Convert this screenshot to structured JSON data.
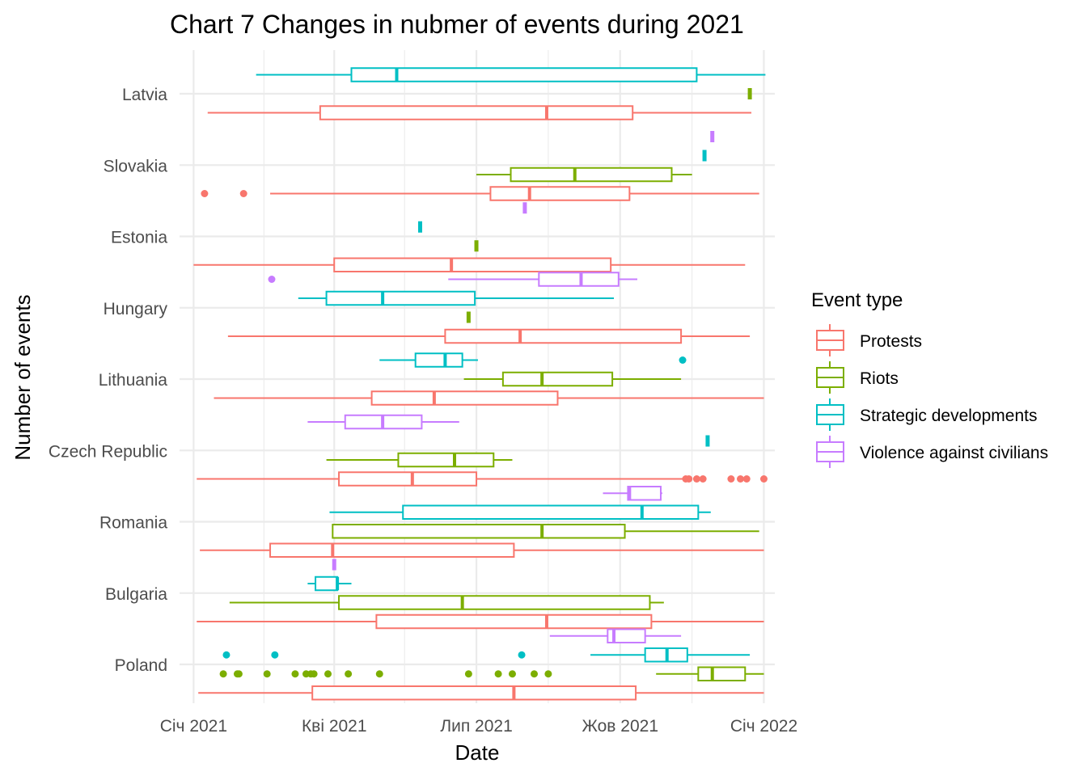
{
  "chart_data": {
    "type": "boxplot",
    "orientation": "horizontal",
    "title": "Chart 7 Changes in nubmer of events during 2021",
    "xlabel": "Date",
    "ylabel": "Number of events",
    "xlim": [
      "2020-12-23",
      "2022-01-08"
    ],
    "x_ticks": [
      {
        "date": "2021-01-01",
        "label": "Січ 2021"
      },
      {
        "date": "2021-04-01",
        "label": "Кві 2021"
      },
      {
        "date": "2021-07-01",
        "label": "Лип 2021"
      },
      {
        "date": "2021-10-01",
        "label": "Жов 2021"
      },
      {
        "date": "2022-01-01",
        "label": "Січ 2022"
      }
    ],
    "x_minor_ticks": [
      "2021-02-15",
      "2021-05-16",
      "2021-08-16",
      "2021-11-16"
    ],
    "categories": [
      "Poland",
      "Bulgaria",
      "Romania",
      "Czech Republic",
      "Lithuania",
      "Hungary",
      "Estonia",
      "Slovakia",
      "Latvia"
    ],
    "legend": {
      "title": "Event type",
      "position": "right",
      "items": [
        {
          "name": "Protests",
          "color": "#F8766D"
        },
        {
          "name": "Riots",
          "color": "#7CAE00"
        },
        {
          "name": "Strategic developments",
          "color": "#00BFC4"
        },
        {
          "name": "Violence against civilians",
          "color": "#C77CFF"
        }
      ]
    },
    "grid": true,
    "boxes": [
      {
        "category": "Latvia",
        "series": "Protests",
        "whisker_low": "2021-01-10",
        "q1": "2021-03-23",
        "median": "2021-08-15",
        "q3": "2021-10-09",
        "whisker_high": "2021-12-24",
        "outliers": []
      },
      {
        "category": "Latvia",
        "series": "Riots",
        "whisker_low": "2021-12-23",
        "q1": "2021-12-23",
        "median": "2021-12-23",
        "q3": "2021-12-23",
        "whisker_high": "2021-12-23",
        "outliers": []
      },
      {
        "category": "Latvia",
        "series": "Strategic developments",
        "whisker_low": "2021-02-10",
        "q1": "2021-04-12",
        "median": "2021-05-11",
        "q3": "2021-10-50",
        "whisker_high": "2022-01-02",
        "outliers": []
      },
      {
        "category": "Slovakia",
        "series": "Protests",
        "whisker_low": "2021-02-19",
        "q1": "2021-07-10",
        "median": "2021-08-04",
        "q3": "2021-10-07",
        "whisker_high": "2021-12-29",
        "outliers": [
          "2021-01-08",
          "2021-02-02"
        ]
      },
      {
        "category": "Slovakia",
        "series": "Riots",
        "whisker_low": "2021-07-01",
        "q1": "2021-07-23",
        "median": "2021-09-02",
        "q3": "2021-11-03",
        "whisker_high": "2021-11-16",
        "outliers": []
      },
      {
        "category": "Slovakia",
        "series": "Strategic developments",
        "whisker_low": "2021-11-24",
        "q1": "2021-11-24",
        "median": "2021-11-24",
        "q3": "2021-11-24",
        "whisker_high": "2021-11-24",
        "outliers": []
      },
      {
        "category": "Slovakia",
        "series": "Violence against civilians",
        "whisker_low": "2021-11-29",
        "q1": "2021-11-29",
        "median": "2021-11-29",
        "q3": "2021-11-29",
        "whisker_high": "2021-11-29",
        "outliers": []
      },
      {
        "category": "Estonia",
        "series": "Protests",
        "whisker_low": "2021-01-01",
        "q1": "2021-04-01",
        "median": "2021-06-15",
        "q3": "2021-09-25",
        "whisker_high": "2021-12-20",
        "outliers": []
      },
      {
        "category": "Estonia",
        "series": "Riots",
        "whisker_low": "2021-07-01",
        "q1": "2021-07-01",
        "median": "2021-07-01",
        "q3": "2021-07-01",
        "whisker_high": "2021-07-01",
        "outliers": []
      },
      {
        "category": "Estonia",
        "series": "Strategic developments",
        "whisker_low": "2021-05-26",
        "q1": "2021-05-26",
        "median": "2021-05-26",
        "q3": "2021-05-26",
        "whisker_high": "2021-05-26",
        "outliers": []
      },
      {
        "category": "Estonia",
        "series": "Violence against civilians",
        "whisker_low": "2021-08-01",
        "q1": "2021-08-01",
        "median": "2021-08-01",
        "q3": "2021-08-01",
        "whisker_high": "2021-08-01",
        "outliers": []
      },
      {
        "category": "Hungary",
        "series": "Protests",
        "whisker_low": "2021-01-23",
        "q1": "2021-06-11",
        "median": "2021-07-29",
        "q3": "2021-11-09",
        "whisker_high": "2021-12-23",
        "outliers": []
      },
      {
        "category": "Hungary",
        "series": "Riots",
        "whisker_low": "2021-06-26",
        "q1": "2021-06-26",
        "median": "2021-06-26",
        "q3": "2021-06-26",
        "whisker_high": "2021-06-26",
        "outliers": []
      },
      {
        "category": "Hungary",
        "series": "Strategic developments",
        "whisker_low": "2021-03-09",
        "q1": "2021-03-27",
        "median": "2021-05-02",
        "q3": "2021-06-30",
        "whisker_high": "2021-09-27",
        "outliers": []
      },
      {
        "category": "Hungary",
        "series": "Violence against civilians",
        "whisker_low": "2021-06-13",
        "q1": "2021-08-10",
        "median": "2021-09-06",
        "q3": "2021-09-30",
        "whisker_high": "2021-10-12",
        "outliers": [
          "2021-02-20"
        ]
      },
      {
        "category": "Lithuania",
        "series": "Protests",
        "whisker_low": "2021-01-14",
        "q1": "2021-04-25",
        "median": "2021-06-04",
        "q3": "2021-08-22",
        "whisker_high": "2022-01-01",
        "outliers": []
      },
      {
        "category": "Lithuania",
        "series": "Riots",
        "whisker_low": "2021-06-23",
        "q1": "2021-07-18",
        "median": "2021-08-12",
        "q3": "2021-09-26",
        "whisker_high": "2021-11-09",
        "outliers": []
      },
      {
        "category": "Lithuania",
        "series": "Strategic developments",
        "whisker_low": "2021-04-30",
        "q1": "2021-05-23",
        "median": "2021-06-11",
        "q3": "2021-06-22",
        "whisker_high": "2021-07-02",
        "outliers": [
          "2021-11-10"
        ]
      },
      {
        "category": "Czech Republic",
        "series": "Protests",
        "whisker_low": "2021-01-03",
        "q1": "2021-04-04",
        "median": "2021-05-21",
        "q3": "2021-07-01",
        "whisker_high": "2021-11-10",
        "outliers": [
          "2021-11-12",
          "2021-11-14",
          "2021-11-19",
          "2021-11-23",
          "2021-12-11",
          "2021-12-17",
          "2021-12-21",
          "2022-01-01"
        ]
      },
      {
        "category": "Czech Republic",
        "series": "Riots",
        "whisker_low": "2021-03-27",
        "q1": "2021-05-12",
        "median": "2021-06-17",
        "q3": "2021-07-12",
        "whisker_high": "2021-07-24",
        "outliers": []
      },
      {
        "category": "Czech Republic",
        "series": "Strategic developments",
        "whisker_low": "2021-11-26",
        "q1": "2021-11-26",
        "median": "2021-11-26",
        "q3": "2021-11-26",
        "whisker_high": "2021-11-26",
        "outliers": []
      },
      {
        "category": "Czech Republic",
        "series": "Violence against civilians",
        "whisker_low": "2021-03-15",
        "q1": "2021-04-08",
        "median": "2021-05-02",
        "q3": "2021-05-27",
        "whisker_high": "2021-06-20",
        "outliers": []
      },
      {
        "category": "Romania",
        "series": "Protests",
        "whisker_low": "2021-01-05",
        "q1": "2021-02-19",
        "median": "2021-03-31",
        "q3": "2021-07-25",
        "whisker_high": "2022-01-01",
        "outliers": []
      },
      {
        "category": "Romania",
        "series": "Riots",
        "whisker_low": "2021-03-31",
        "q1": "2021-03-31",
        "median": "2021-08-12",
        "q3": "2021-10-04",
        "whisker_high": "2021-12-29",
        "outliers": []
      },
      {
        "category": "Romania",
        "series": "Strategic developments",
        "whisker_low": "2021-03-29",
        "q1": "2021-05-15",
        "median": "2021-10-15",
        "q3": "2021-11-20",
        "whisker_high": "2021-11-28",
        "outliers": []
      },
      {
        "category": "Romania",
        "series": "Violence against civilians",
        "whisker_low": "2021-09-20",
        "q1": "2021-10-06",
        "median": "2021-10-07",
        "q3": "2021-10-27",
        "whisker_high": "2021-10-28",
        "outliers": []
      },
      {
        "category": "Bulgaria",
        "series": "Protests",
        "whisker_low": "2021-01-03",
        "q1": "2021-04-28",
        "median": "2021-08-15",
        "q3": "2021-10-21",
        "whisker_high": "2022-01-01",
        "outliers": []
      },
      {
        "category": "Bulgaria",
        "series": "Riots",
        "whisker_low": "2021-01-24",
        "q1": "2021-04-04",
        "median": "2021-06-22",
        "q3": "2021-10-20",
        "whisker_high": "2021-10-29",
        "outliers": []
      },
      {
        "category": "Bulgaria",
        "series": "Strategic developments",
        "whisker_low": "2021-03-15",
        "q1": "2021-03-20",
        "median": "2021-04-03",
        "q3": "2021-04-03",
        "whisker_high": "2021-04-12",
        "outliers": []
      },
      {
        "category": "Bulgaria",
        "series": "Violence against civilians",
        "whisker_low": "2021-04-01",
        "q1": "2021-04-01",
        "median": "2021-04-01",
        "q3": "2021-04-01",
        "whisker_high": "2021-04-01",
        "outliers": []
      },
      {
        "category": "Poland",
        "series": "Protests",
        "whisker_low": "2021-01-04",
        "q1": "2021-03-18",
        "median": "2021-07-25",
        "q3": "2021-10-11",
        "whisker_high": "2022-01-01",
        "outliers": []
      },
      {
        "category": "Poland",
        "series": "Riots",
        "whisker_low": "2021-10-24",
        "q1": "2021-11-20",
        "median": "2021-11-29",
        "q3": "2021-12-20",
        "whisker_high": "2022-01-01",
        "outliers": [
          "2021-01-20",
          "2021-01-29",
          "2021-01-30",
          "2021-02-17",
          "2021-03-07",
          "2021-03-14",
          "2021-03-17",
          "2021-03-19",
          "2021-03-28",
          "2021-04-10",
          "2021-04-30",
          "2021-06-26",
          "2021-07-15",
          "2021-07-24",
          "2021-08-07",
          "2021-08-16"
        ]
      },
      {
        "category": "Poland",
        "series": "Strategic developments",
        "whisker_low": "2021-09-12",
        "q1": "2021-10-17",
        "median": "2021-10-31",
        "q3": "2021-11-13",
        "whisker_high": "2021-12-23",
        "outliers": [
          "2021-01-22",
          "2021-02-22",
          "2021-07-30"
        ]
      },
      {
        "category": "Poland",
        "series": "Violence against civilians",
        "whisker_low": "2021-08-17",
        "q1": "2021-09-23",
        "median": "2021-09-27",
        "q3": "2021-10-17",
        "whisker_high": "2021-11-09",
        "outliers": []
      }
    ]
  }
}
